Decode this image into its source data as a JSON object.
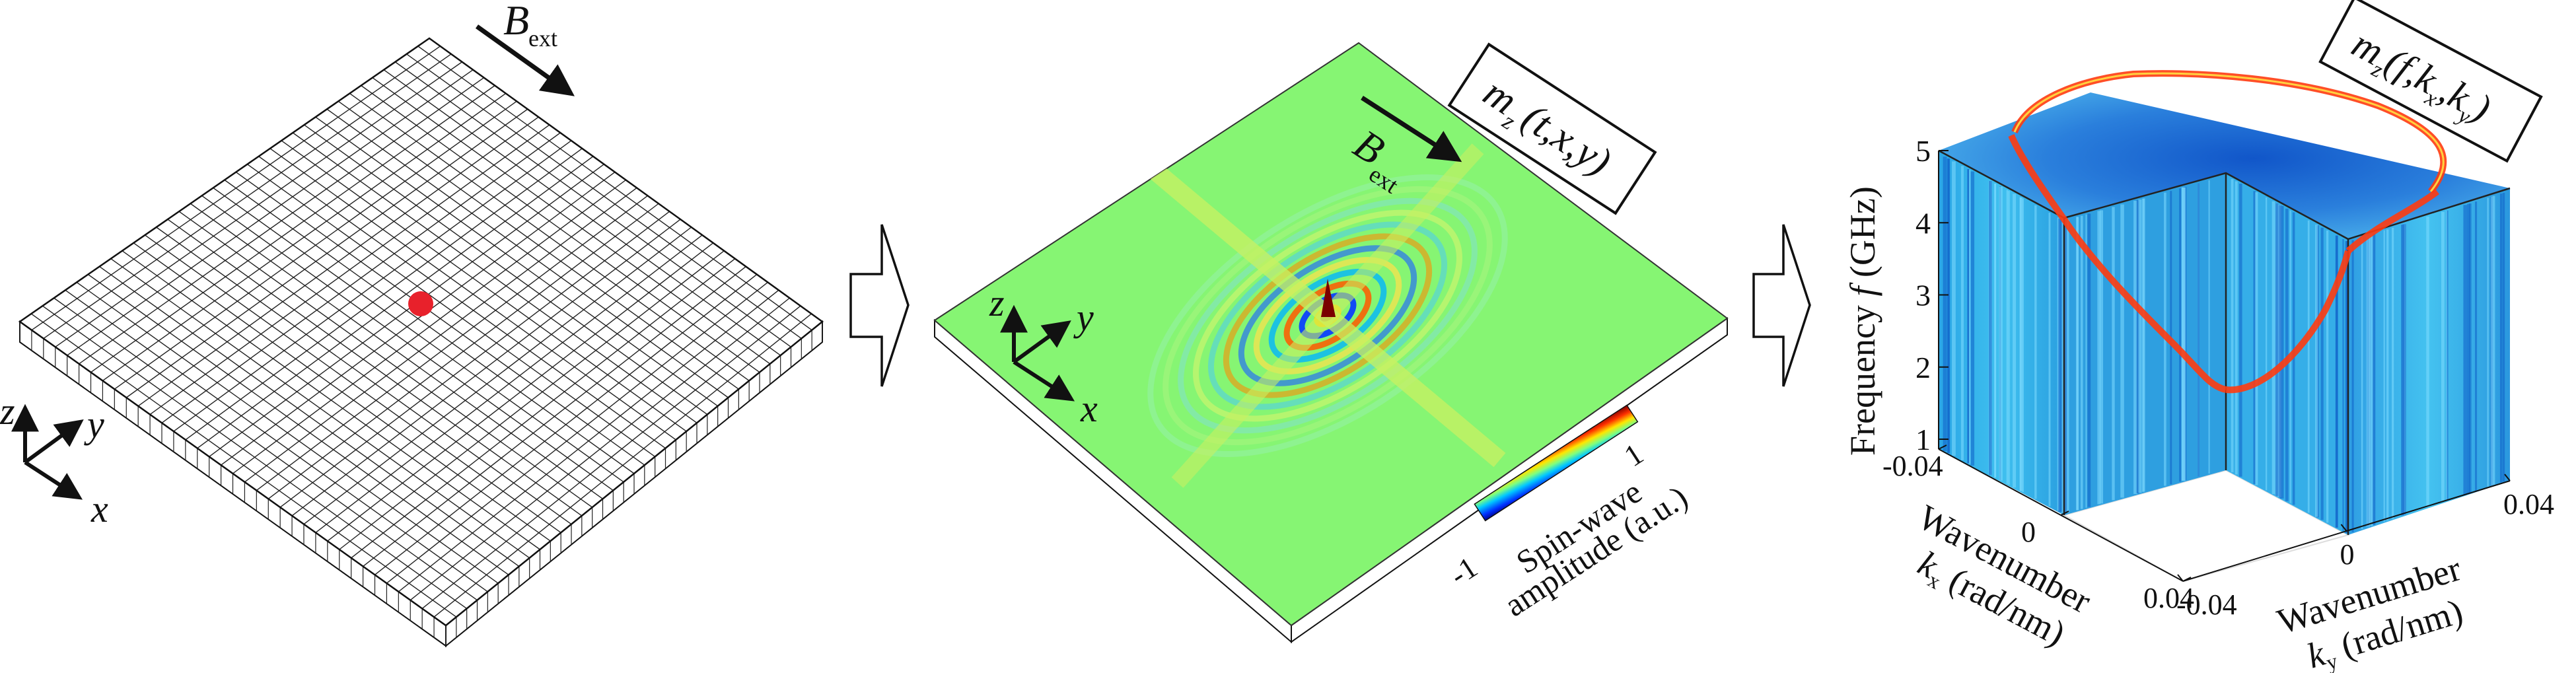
{
  "panel_grid": {
    "field_label": "B",
    "field_subscript": "ext",
    "axis_x": "x",
    "axis_y": "y",
    "axis_z": "z",
    "source_color": "#e8212b",
    "cell_count": 36
  },
  "panel_wave": {
    "field_label": "B",
    "field_subscript": "ext",
    "axis_x": "x",
    "axis_y": "y",
    "axis_z": "z",
    "box_m": "m",
    "box_sub": "z",
    "box_args": "(t,x,y)",
    "colorbar": {
      "min_label": "-1",
      "max_label": "1",
      "title_line1": "Spin-wave",
      "title_line2": "amplitude (a.u.)"
    },
    "background_color": "#86f573"
  },
  "panel_spectrum": {
    "box_m": "m",
    "box_sub": "z",
    "box_args_open": "(f,k",
    "box_args_kx_sub": "x",
    "box_args_mid": ",k",
    "box_args_ky_sub": "y",
    "box_args_close": ")",
    "z_axis_label": "Frequency ",
    "z_axis_label_var": "f",
    "z_axis_label_unit": " (GHz)",
    "z_ticks": [
      "1",
      "2",
      "3",
      "4",
      "5"
    ],
    "kx_ticks": [
      "-0.04",
      "0",
      "0.04"
    ],
    "ky_ticks": [
      "-0.04",
      "0",
      "0.04"
    ],
    "kx_label_line1": "Wavenumber",
    "kx_label_var": "k",
    "kx_label_sub": "x",
    "kx_label_unit": " (rad/nm)",
    "ky_label_line1": "Wavenumber",
    "ky_label_var": "k",
    "ky_label_sub": "y",
    "ky_label_unit": " (rad/nm)"
  }
}
